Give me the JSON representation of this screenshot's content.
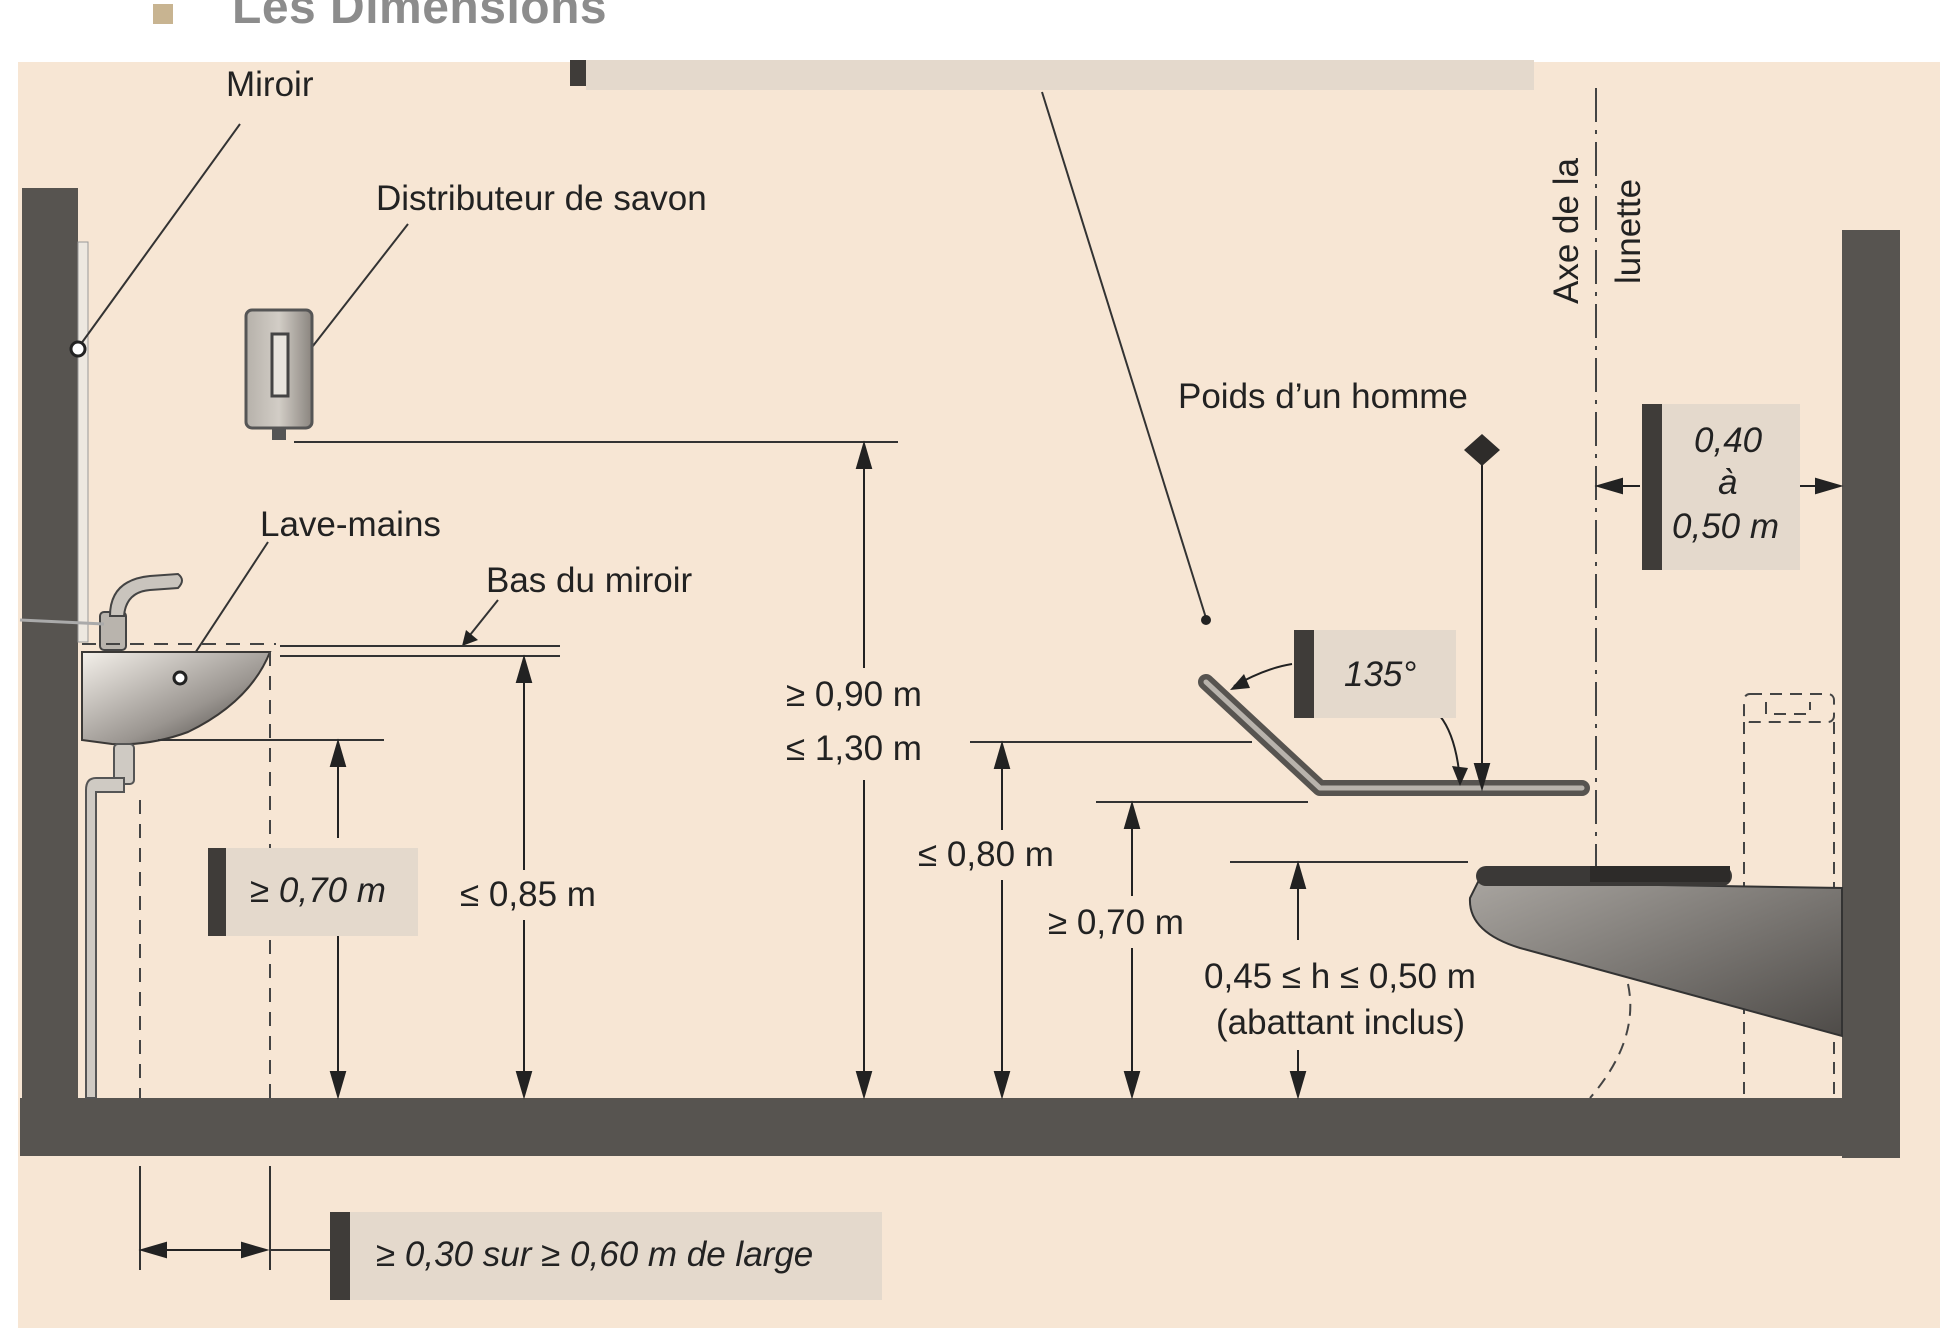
{
  "header": {
    "title": "Les Dimensions"
  },
  "colors": {
    "background": "#f7e6d4",
    "wall": "#575450",
    "label_box": "#e4d9cc",
    "label_bar": "#3f3c39",
    "bullet": "#c8b491",
    "title": "#8c8c8c"
  },
  "labels": {
    "miroir": "Miroir",
    "distributeur": "Distributeur de savon",
    "lave_mains": "Lave-mains",
    "bas_miroir": "Bas du miroir",
    "axe_line1": "Axe de la",
    "axe_line2": "lunette",
    "poids": "Poids d’un homme"
  },
  "dimensions": {
    "lavabo_height": "≥ 0,70 m",
    "mirror_bottom": "≤ 0,85 m",
    "dispenser_min": "≥ 0,90 m",
    "dispenser_max": "≤ 1,30 m",
    "grab_bar_max": "≤ 0,80 m",
    "grab_bar_min": "≥ 0,70 m",
    "seat_height": "0,45 ≤ h ≤ 0,50 m",
    "seat_note": "(abattant inclus)",
    "angle": "135°",
    "axis_dist_1": "0,40",
    "axis_dist_2": "à",
    "axis_dist_3": "0,50 m",
    "clearance": "≥ 0,30 sur ≥ 0,60 m de large"
  }
}
